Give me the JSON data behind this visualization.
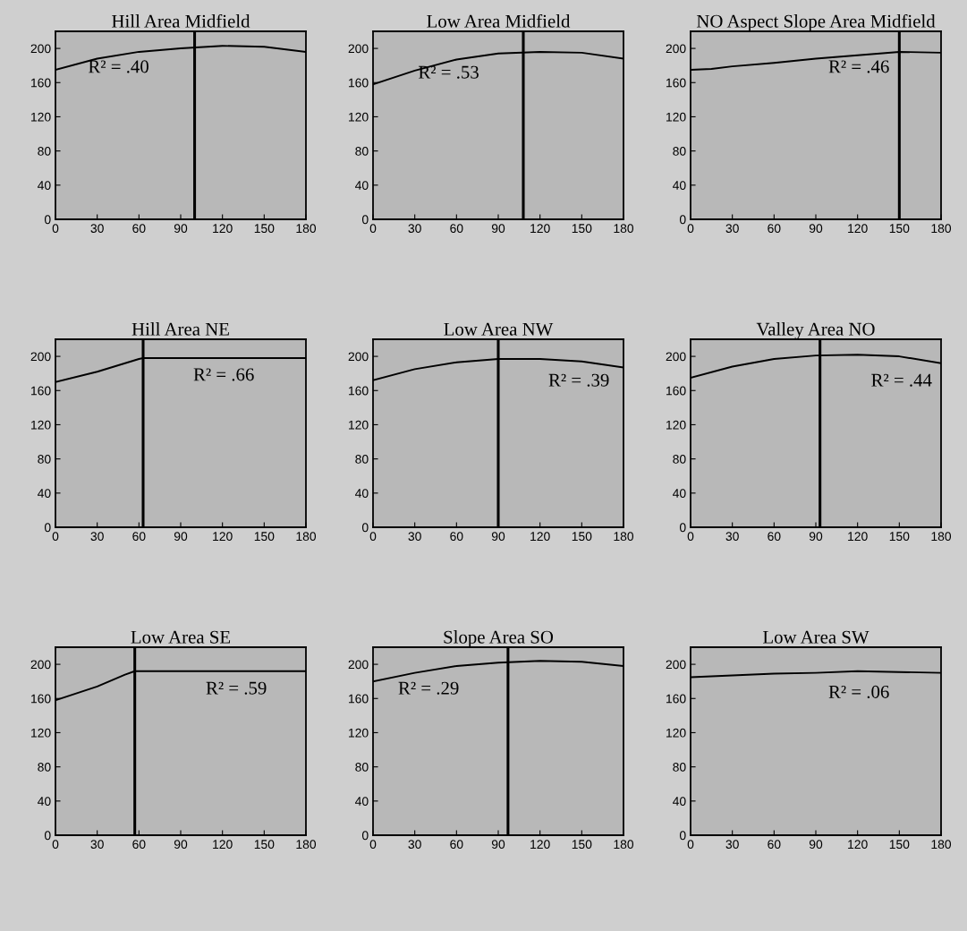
{
  "chart_data": [
    {
      "type": "line",
      "title": "Hill Area Midfield",
      "x": [
        0,
        30,
        60,
        90,
        120,
        150,
        180
      ],
      "series": [
        {
          "color": "#000000",
          "values": [
            175,
            188,
            196,
            200,
            203,
            202,
            196
          ]
        }
      ],
      "ref_lines": [
        {
          "axis": "x",
          "value": 100,
          "color": "#000000"
        }
      ],
      "annotations": [
        "R² = .40"
      ],
      "xlim": [
        0,
        180
      ],
      "xticks": [
        0,
        30,
        60,
        90,
        120,
        150,
        180
      ],
      "ylim": [
        0,
        220
      ],
      "yticks": [
        0,
        40,
        80,
        120,
        160,
        200
      ],
      "grid": false,
      "legend": false
    },
    {
      "type": "line",
      "title": "Low Area Midfield",
      "x": [
        0,
        30,
        60,
        90,
        120,
        150,
        180
      ],
      "series": [
        {
          "color": "#000000",
          "values": [
            158,
            174,
            187,
            194,
            196,
            195,
            188
          ]
        }
      ],
      "ref_lines": [
        {
          "axis": "x",
          "value": 108,
          "color": "#000000"
        }
      ],
      "annotations": [
        "R² = .53"
      ],
      "xlim": [
        0,
        180
      ],
      "xticks": [
        0,
        30,
        60,
        90,
        120,
        150,
        180
      ],
      "ylim": [
        0,
        220
      ],
      "yticks": [
        0,
        40,
        80,
        120,
        160,
        200
      ],
      "grid": false,
      "legend": false
    },
    {
      "type": "line",
      "title": "NO Aspect Slope Area Midfield",
      "x": [
        0,
        15,
        30,
        60,
        90,
        120,
        150,
        180
      ],
      "series": [
        {
          "color": "#000000",
          "values": [
            175,
            176,
            179,
            183,
            188,
            192,
            196,
            195
          ]
        }
      ],
      "ref_lines": [
        {
          "axis": "x",
          "value": 150,
          "color": "#000000"
        }
      ],
      "annotations": [
        "R² = .46"
      ],
      "xlim": [
        0,
        180
      ],
      "xticks": [
        0,
        30,
        60,
        90,
        120,
        150,
        180
      ],
      "ylim": [
        0,
        220
      ],
      "yticks": [
        0,
        40,
        80,
        120,
        160,
        200
      ],
      "grid": false,
      "legend": false
    },
    {
      "type": "line",
      "title": "Hill Area NE",
      "x": [
        0,
        30,
        60,
        63,
        180
      ],
      "series": [
        {
          "color": "#000000",
          "values": [
            170,
            182,
            197,
            198,
            198
          ]
        }
      ],
      "ref_lines": [
        {
          "axis": "x",
          "value": 63,
          "color": "#000000"
        }
      ],
      "annotations": [
        "R² = .66"
      ],
      "xlim": [
        0,
        180
      ],
      "xticks": [
        0,
        30,
        60,
        90,
        120,
        150,
        180
      ],
      "ylim": [
        0,
        220
      ],
      "yticks": [
        0,
        40,
        80,
        120,
        160,
        200
      ],
      "grid": false,
      "legend": false
    },
    {
      "type": "line",
      "title": "Low Area NW",
      "x": [
        0,
        30,
        60,
        90,
        120,
        150,
        180
      ],
      "series": [
        {
          "color": "#000000",
          "values": [
            172,
            185,
            193,
            197,
            197,
            194,
            187
          ]
        }
      ],
      "ref_lines": [
        {
          "axis": "x",
          "value": 90,
          "color": "#000000"
        }
      ],
      "annotations": [
        "R² = .39"
      ],
      "xlim": [
        0,
        180
      ],
      "xticks": [
        0,
        30,
        60,
        90,
        120,
        150,
        180
      ],
      "ylim": [
        0,
        220
      ],
      "yticks": [
        0,
        40,
        80,
        120,
        160,
        200
      ],
      "grid": false,
      "legend": false
    },
    {
      "type": "line",
      "title": "Valley Area NO",
      "x": [
        0,
        30,
        60,
        90,
        120,
        150,
        180
      ],
      "series": [
        {
          "color": "#000000",
          "values": [
            175,
            188,
            197,
            201,
            202,
            200,
            192
          ]
        }
      ],
      "ref_lines": [
        {
          "axis": "x",
          "value": 93,
          "color": "#000000"
        }
      ],
      "annotations": [
        "R² = .44"
      ],
      "xlim": [
        0,
        180
      ],
      "xticks": [
        0,
        30,
        60,
        90,
        120,
        150,
        180
      ],
      "ylim": [
        0,
        220
      ],
      "yticks": [
        0,
        40,
        80,
        120,
        160,
        200
      ],
      "grid": false,
      "legend": false
    },
    {
      "type": "line",
      "title": "Low Area SE",
      "x": [
        0,
        30,
        50,
        57,
        180
      ],
      "series": [
        {
          "color": "#000000",
          "values": [
            158,
            174,
            188,
            192,
            192
          ]
        }
      ],
      "ref_lines": [
        {
          "axis": "x",
          "value": 57,
          "color": "#000000"
        }
      ],
      "annotations": [
        "R² = .59"
      ],
      "xlim": [
        0,
        180
      ],
      "xticks": [
        0,
        30,
        60,
        90,
        120,
        150,
        180
      ],
      "ylim": [
        0,
        220
      ],
      "yticks": [
        0,
        40,
        80,
        120,
        160,
        200
      ],
      "grid": false,
      "legend": false
    },
    {
      "type": "line",
      "title": "Slope Area SO",
      "x": [
        0,
        30,
        60,
        90,
        120,
        150,
        180
      ],
      "series": [
        {
          "color": "#000000",
          "values": [
            180,
            190,
            198,
            202,
            204,
            203,
            198
          ]
        }
      ],
      "ref_lines": [
        {
          "axis": "x",
          "value": 97,
          "color": "#000000"
        }
      ],
      "annotations": [
        "R² = .29"
      ],
      "xlim": [
        0,
        180
      ],
      "xticks": [
        0,
        30,
        60,
        90,
        120,
        150,
        180
      ],
      "ylim": [
        0,
        220
      ],
      "yticks": [
        0,
        40,
        80,
        120,
        160,
        200
      ],
      "grid": false,
      "legend": false
    },
    {
      "type": "line",
      "title": "Low Area SW",
      "x": [
        0,
        30,
        60,
        90,
        120,
        150,
        180
      ],
      "series": [
        {
          "color": "#000000",
          "values": [
            185,
            187,
            189,
            190,
            192,
            191,
            190
          ]
        }
      ],
      "annotations": [
        "R² = .06"
      ],
      "xlim": [
        0,
        180
      ],
      "xticks": [
        0,
        30,
        60,
        90,
        120,
        150,
        180
      ],
      "ylim": [
        0,
        220
      ],
      "yticks": [
        0,
        40,
        80,
        120,
        160,
        200
      ],
      "grid": false,
      "legend": false
    }
  ]
}
